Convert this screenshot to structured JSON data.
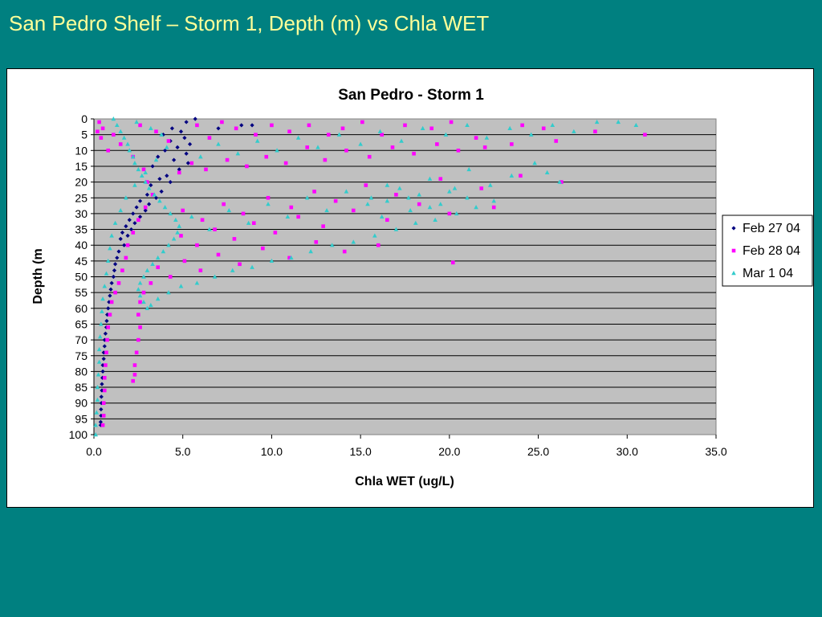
{
  "slide": {
    "title": "San Pedro Shelf – Storm 1, Depth (m) vs Chla WET"
  },
  "chart_data": {
    "type": "scatter",
    "title": "San Pedro - Storm 1",
    "xlabel": "Chla WET (ug/L)",
    "ylabel": "Depth (m",
    "xlim": [
      0,
      35
    ],
    "ylim": [
      0,
      100
    ],
    "y_reversed": true,
    "x_ticks": [
      "0.0",
      "5.0",
      "10.0",
      "15.0",
      "20.0",
      "25.0",
      "30.0",
      "35.0"
    ],
    "y_ticks": [
      "0",
      "5",
      "10",
      "15",
      "20",
      "25",
      "30",
      "35",
      "40",
      "45",
      "50",
      "55",
      "60",
      "65",
      "70",
      "75",
      "80",
      "85",
      "90",
      "95",
      "100"
    ],
    "grid": "horizontal",
    "plot_background": "#c0c0c0",
    "legend_position": "right",
    "series": [
      {
        "name": "Feb 27 04",
        "color": "#000080",
        "marker": "diamond",
        "points": [
          [
            5.7,
            0
          ],
          [
            5.2,
            1
          ],
          [
            8.3,
            2
          ],
          [
            8.9,
            2
          ],
          [
            7.0,
            3
          ],
          [
            4.4,
            3
          ],
          [
            4.9,
            4
          ],
          [
            3.9,
            5
          ],
          [
            5.1,
            6
          ],
          [
            4.3,
            7
          ],
          [
            5.4,
            8
          ],
          [
            4.7,
            9
          ],
          [
            4.0,
            10
          ],
          [
            5.2,
            11
          ],
          [
            3.6,
            12
          ],
          [
            4.5,
            13
          ],
          [
            5.3,
            14
          ],
          [
            3.3,
            15
          ],
          [
            4.8,
            16
          ],
          [
            4.1,
            18
          ],
          [
            3.7,
            19
          ],
          [
            4.3,
            20
          ],
          [
            3.2,
            21
          ],
          [
            3.8,
            23
          ],
          [
            3.0,
            24
          ],
          [
            3.5,
            25
          ],
          [
            2.6,
            26
          ],
          [
            3.1,
            27
          ],
          [
            2.4,
            28
          ],
          [
            2.9,
            29
          ],
          [
            2.2,
            30
          ],
          [
            2.6,
            31
          ],
          [
            2.0,
            32
          ],
          [
            2.3,
            33
          ],
          [
            1.8,
            34
          ],
          [
            2.1,
            35
          ],
          [
            1.6,
            36
          ],
          [
            1.9,
            37
          ],
          [
            1.5,
            38
          ],
          [
            1.7,
            40
          ],
          [
            1.4,
            42
          ],
          [
            1.3,
            44
          ],
          [
            1.2,
            46
          ],
          [
            1.15,
            48
          ],
          [
            1.1,
            50
          ],
          [
            1.0,
            52
          ],
          [
            0.95,
            54
          ],
          [
            0.9,
            56
          ],
          [
            0.85,
            58
          ],
          [
            0.8,
            60
          ],
          [
            0.75,
            62
          ],
          [
            0.72,
            64
          ],
          [
            0.7,
            66
          ],
          [
            0.65,
            68
          ],
          [
            0.6,
            70
          ],
          [
            0.6,
            72
          ],
          [
            0.55,
            74
          ],
          [
            0.55,
            76
          ],
          [
            0.5,
            78
          ],
          [
            0.5,
            80
          ],
          [
            0.48,
            82
          ],
          [
            0.45,
            84
          ],
          [
            0.45,
            86
          ],
          [
            0.42,
            88
          ],
          [
            0.42,
            90
          ],
          [
            0.4,
            92
          ],
          [
            0.4,
            94
          ],
          [
            0.38,
            96
          ],
          [
            0.38,
            97
          ]
        ]
      },
      {
        "name": "Feb 28 04",
        "color": "#ff00ff",
        "marker": "square",
        "points": [
          [
            31.0,
            5
          ],
          [
            28.2,
            4
          ],
          [
            25.3,
            3
          ],
          [
            24.1,
            2
          ],
          [
            21.5,
            6
          ],
          [
            20.1,
            1
          ],
          [
            19.0,
            3
          ],
          [
            17.5,
            2
          ],
          [
            16.2,
            5
          ],
          [
            15.1,
            1
          ],
          [
            14.0,
            3
          ],
          [
            13.2,
            5
          ],
          [
            12.1,
            2
          ],
          [
            11.0,
            4
          ],
          [
            10.0,
            2
          ],
          [
            9.1,
            5
          ],
          [
            8.0,
            3
          ],
          [
            7.2,
            1
          ],
          [
            6.5,
            6
          ],
          [
            5.8,
            2
          ],
          [
            26.0,
            7
          ],
          [
            23.5,
            8
          ],
          [
            22.0,
            9
          ],
          [
            20.5,
            10
          ],
          [
            19.3,
            8
          ],
          [
            18.0,
            11
          ],
          [
            16.8,
            9
          ],
          [
            15.5,
            12
          ],
          [
            14.2,
            10
          ],
          [
            13.0,
            13
          ],
          [
            12.0,
            9
          ],
          [
            10.8,
            14
          ],
          [
            9.7,
            12
          ],
          [
            8.6,
            15
          ],
          [
            7.5,
            13
          ],
          [
            6.3,
            16
          ],
          [
            5.5,
            14
          ],
          [
            4.8,
            17
          ],
          [
            26.3,
            20
          ],
          [
            24.0,
            18
          ],
          [
            21.8,
            22
          ],
          [
            19.5,
            19
          ],
          [
            17.0,
            24
          ],
          [
            15.3,
            21
          ],
          [
            13.6,
            26
          ],
          [
            12.4,
            23
          ],
          [
            11.1,
            28
          ],
          [
            9.8,
            25
          ],
          [
            8.4,
            30
          ],
          [
            7.3,
            27
          ],
          [
            6.1,
            32
          ],
          [
            5.0,
            29
          ],
          [
            22.5,
            28
          ],
          [
            20.0,
            30
          ],
          [
            18.3,
            27
          ],
          [
            16.5,
            32
          ],
          [
            14.6,
            29
          ],
          [
            12.9,
            34
          ],
          [
            11.5,
            31
          ],
          [
            10.2,
            36
          ],
          [
            9.0,
            33
          ],
          [
            7.9,
            38
          ],
          [
            6.8,
            35
          ],
          [
            5.8,
            40
          ],
          [
            4.9,
            37
          ],
          [
            20.2,
            45.5
          ],
          [
            16.0,
            40
          ],
          [
            14.1,
            42
          ],
          [
            12.5,
            39
          ],
          [
            11.0,
            44
          ],
          [
            9.5,
            41
          ],
          [
            8.2,
            46
          ],
          [
            7.0,
            43
          ],
          [
            6.0,
            48
          ],
          [
            5.1,
            45
          ],
          [
            4.3,
            50
          ],
          [
            3.6,
            47
          ],
          [
            3.2,
            52
          ],
          [
            2.8,
            55
          ],
          [
            2.6,
            58
          ],
          [
            2.5,
            62
          ],
          [
            2.6,
            66
          ],
          [
            2.5,
            70
          ],
          [
            2.4,
            74
          ],
          [
            2.3,
            78
          ],
          [
            2.3,
            81
          ],
          [
            2.2,
            83
          ],
          [
            1.8,
            44
          ],
          [
            1.6,
            48
          ],
          [
            1.4,
            52
          ],
          [
            1.2,
            55
          ],
          [
            1.0,
            58
          ],
          [
            0.9,
            62
          ],
          [
            0.8,
            66
          ],
          [
            0.75,
            70
          ],
          [
            0.7,
            74
          ],
          [
            0.65,
            78
          ],
          [
            0.6,
            82
          ],
          [
            0.6,
            86
          ],
          [
            0.55,
            90
          ],
          [
            0.55,
            94
          ],
          [
            0.5,
            97
          ],
          [
            0.3,
            1
          ],
          [
            0.2,
            4
          ],
          [
            0.4,
            6
          ],
          [
            0.5,
            3
          ],
          [
            1.5,
            8
          ],
          [
            2.2,
            12
          ],
          [
            2.8,
            16
          ],
          [
            3.0,
            20
          ],
          [
            3.3,
            24
          ],
          [
            2.9,
            28
          ],
          [
            2.5,
            32
          ],
          [
            2.2,
            36
          ],
          [
            1.9,
            40
          ],
          [
            3.5,
            4
          ],
          [
            4.2,
            7
          ],
          [
            2.6,
            2
          ],
          [
            1.1,
            5
          ],
          [
            0.8,
            10
          ]
        ]
      },
      {
        "name": "Mar 1 04",
        "color": "#33cccc",
        "marker": "triangle",
        "points": [
          [
            30.5,
            2
          ],
          [
            29.5,
            1
          ],
          [
            28.3,
            1
          ],
          [
            27.0,
            4
          ],
          [
            25.8,
            2
          ],
          [
            24.6,
            5
          ],
          [
            23.4,
            3
          ],
          [
            22.1,
            6
          ],
          [
            21.0,
            2
          ],
          [
            19.8,
            5
          ],
          [
            18.5,
            3
          ],
          [
            17.3,
            7
          ],
          [
            16.1,
            4
          ],
          [
            15.0,
            8
          ],
          [
            13.8,
            5
          ],
          [
            12.6,
            9
          ],
          [
            11.5,
            6
          ],
          [
            10.3,
            10
          ],
          [
            9.2,
            7
          ],
          [
            8.1,
            11
          ],
          [
            7.0,
            8
          ],
          [
            6.0,
            12
          ],
          [
            26.2,
            20
          ],
          [
            25.5,
            17
          ],
          [
            24.8,
            14
          ],
          [
            23.5,
            18
          ],
          [
            22.3,
            21
          ],
          [
            21.1,
            16
          ],
          [
            20.0,
            23
          ],
          [
            18.9,
            19
          ],
          [
            17.7,
            25
          ],
          [
            16.5,
            21
          ],
          [
            15.4,
            27
          ],
          [
            14.2,
            23
          ],
          [
            13.1,
            29
          ],
          [
            12.0,
            25
          ],
          [
            10.9,
            31
          ],
          [
            9.8,
            27
          ],
          [
            8.7,
            33
          ],
          [
            7.6,
            29
          ],
          [
            6.5,
            35
          ],
          [
            5.5,
            31
          ],
          [
            22.5,
            26
          ],
          [
            21.5,
            28
          ],
          [
            20.4,
            30
          ],
          [
            19.2,
            32
          ],
          [
            18.1,
            33
          ],
          [
            17.0,
            35
          ],
          [
            15.8,
            37
          ],
          [
            14.6,
            39
          ],
          [
            13.4,
            40
          ],
          [
            12.2,
            42
          ],
          [
            11.1,
            44
          ],
          [
            10.0,
            45
          ],
          [
            8.9,
            47
          ],
          [
            7.8,
            48
          ],
          [
            6.8,
            50
          ],
          [
            5.8,
            52
          ],
          [
            4.9,
            53
          ],
          [
            4.2,
            55
          ],
          [
            3.6,
            57
          ],
          [
            3.2,
            59
          ],
          [
            3.0,
            60
          ],
          [
            2.8,
            58
          ],
          [
            2.6,
            56
          ],
          [
            2.5,
            54
          ],
          [
            2.6,
            52
          ],
          [
            2.8,
            50
          ],
          [
            3.0,
            48
          ],
          [
            3.3,
            46
          ],
          [
            3.6,
            44
          ],
          [
            3.9,
            42
          ],
          [
            4.2,
            40
          ],
          [
            4.5,
            38
          ],
          [
            4.7,
            36
          ],
          [
            4.8,
            34
          ],
          [
            4.6,
            32
          ],
          [
            4.3,
            30
          ],
          [
            4.0,
            28
          ],
          [
            3.7,
            26
          ],
          [
            3.4,
            24
          ],
          [
            3.1,
            22
          ],
          [
            2.9,
            20
          ],
          [
            2.7,
            18
          ],
          [
            2.5,
            16
          ],
          [
            2.3,
            14
          ],
          [
            2.2,
            12
          ],
          [
            2.0,
            10
          ],
          [
            1.9,
            8
          ],
          [
            1.7,
            6
          ],
          [
            1.5,
            4
          ],
          [
            1.3,
            2
          ],
          [
            1.1,
            0
          ],
          [
            2.4,
            1
          ],
          [
            3.2,
            3
          ],
          [
            3.8,
            5
          ],
          [
            4.1,
            9
          ],
          [
            3.5,
            13
          ],
          [
            2.9,
            17
          ],
          [
            2.3,
            21
          ],
          [
            1.8,
            25
          ],
          [
            1.5,
            29
          ],
          [
            1.2,
            33
          ],
          [
            1.0,
            37
          ],
          [
            0.9,
            41
          ],
          [
            0.8,
            45
          ],
          [
            0.7,
            49
          ],
          [
            0.6,
            53
          ],
          [
            0.5,
            57
          ],
          [
            0.45,
            61
          ],
          [
            0.4,
            65
          ],
          [
            0.35,
            69
          ],
          [
            0.3,
            73
          ],
          [
            0.3,
            77
          ],
          [
            0.25,
            81
          ],
          [
            0.2,
            85
          ],
          [
            0.2,
            89
          ],
          [
            0.15,
            93
          ],
          [
            0.1,
            97
          ],
          [
            0.1,
            100
          ],
          [
            16.5,
            26
          ],
          [
            17.2,
            22
          ],
          [
            18.3,
            24
          ],
          [
            19.5,
            27
          ],
          [
            21.0,
            25
          ],
          [
            17.8,
            29
          ],
          [
            16.2,
            31
          ],
          [
            18.9,
            28
          ],
          [
            20.3,
            22
          ],
          [
            15.6,
            25
          ]
        ]
      }
    ]
  }
}
